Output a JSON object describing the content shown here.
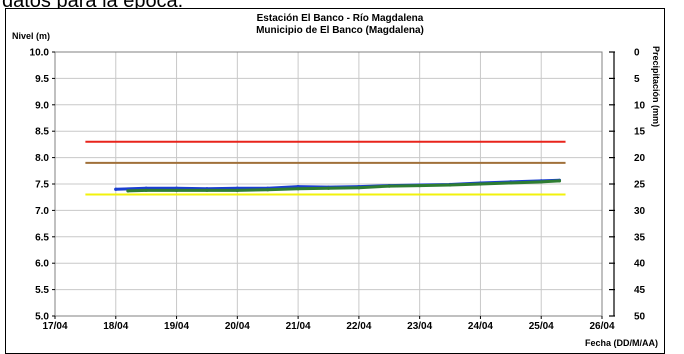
{
  "page": {
    "partial_top_text": "datos para la época."
  },
  "chart_data": {
    "type": "line",
    "title": "Estación El Banco - Río Magdalena",
    "subtitle": "Municipio de El Banco (Magdalena)",
    "ylabel": "Nivel (m)",
    "xlabel": "Fecha (DD/M/AA)",
    "y2label": "Precipitación (mm)",
    "ylim": [
      5.0,
      10.0
    ],
    "y_ticks": [
      "10.0",
      "9.5",
      "9.0",
      "8.5",
      "8.0",
      "7.5",
      "7.0",
      "6.5",
      "6.0",
      "5.5",
      "5.0"
    ],
    "y2lim": [
      0,
      50
    ],
    "y2_ticks": [
      "0",
      "5",
      "10",
      "15",
      "20",
      "25",
      "30",
      "35",
      "40",
      "45",
      "50"
    ],
    "x_ticks": [
      "17/04",
      "18/04",
      "19/04",
      "20/04",
      "21/04",
      "22/04",
      "23/04",
      "24/04",
      "25/04",
      "26/04"
    ],
    "xlim": [
      0,
      9
    ],
    "grid": true,
    "reference_lines": [
      {
        "color": "#e8241b",
        "y": 8.3,
        "x_start": 0.5,
        "x_end": 8.4
      },
      {
        "color": "#a0703a",
        "y": 7.9,
        "x_start": 0.5,
        "x_end": 8.4
      },
      {
        "color": "#f2f20c",
        "y": 7.3,
        "x_start": 0.5,
        "x_end": 8.4
      }
    ],
    "series": [
      {
        "color": "#1b3fd1",
        "x": [
          1.0,
          1.5,
          2.0,
          2.5,
          3.0,
          3.5,
          4.0,
          4.5,
          5.0,
          5.5,
          6.0,
          6.5,
          7.0,
          7.5,
          8.0,
          8.3
        ],
        "y": [
          7.4,
          7.42,
          7.42,
          7.41,
          7.42,
          7.42,
          7.45,
          7.44,
          7.45,
          7.47,
          7.48,
          7.49,
          7.52,
          7.54,
          7.56,
          7.57
        ]
      },
      {
        "color": "#2e7d32",
        "x": [
          1.2,
          1.5,
          2.0,
          2.5,
          3.0,
          3.5,
          4.0,
          4.5,
          5.0,
          5.5,
          6.0,
          6.5,
          7.0,
          7.5,
          8.0,
          8.3
        ],
        "y": [
          7.37,
          7.38,
          7.38,
          7.38,
          7.38,
          7.39,
          7.41,
          7.42,
          7.43,
          7.46,
          7.47,
          7.48,
          7.5,
          7.52,
          7.54,
          7.56
        ]
      }
    ]
  }
}
